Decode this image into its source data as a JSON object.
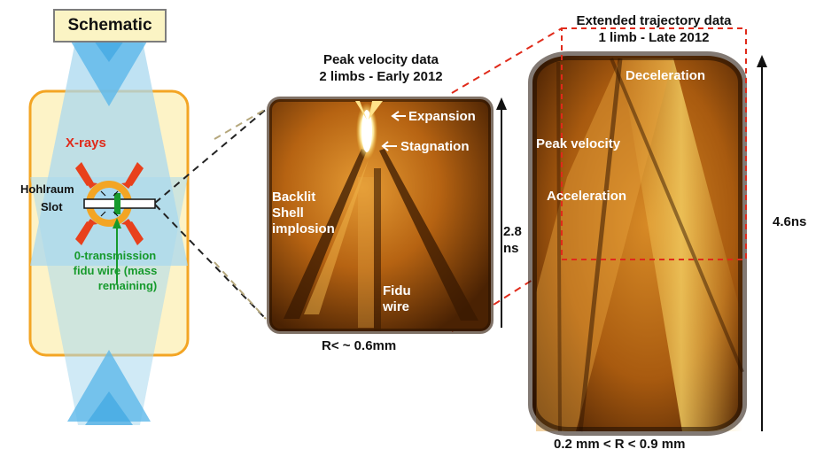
{
  "schematic": {
    "title": "Schematic",
    "xrays": "X-rays",
    "hohlraum": "Hohlraum",
    "slot": "Slot",
    "wire_line1": "0-transmission",
    "wire_line2": "fidu wire (mass",
    "wire_line3": "remaining)"
  },
  "peak_panel": {
    "title_line1": "Peak velocity data",
    "title_line2": "2 limbs - Early 2012",
    "expansion": "Expansion",
    "stagnation": "Stagnation",
    "backlit_line1": "Backlit",
    "backlit_line2": "Shell",
    "backlit_line3": "implosion",
    "fidu_line1": "Fidu",
    "fidu_line2": "wire",
    "time_value": "2.8",
    "time_unit": "ns",
    "radius": "R< ~ 0.6mm"
  },
  "extended_panel": {
    "title_line1": "Extended trajectory data",
    "title_line2": "1 limb - Late 2012",
    "deceleration": "Deceleration",
    "peak_velocity": "Peak velocity",
    "acceleration": "Acceleration",
    "time": "4.6ns",
    "radius": "0.2 mm < R < 0.9 mm"
  },
  "colors": {
    "xray_arrow": "#e8401c",
    "wire": "#169a2c",
    "zoom_dash_dark": "#222222",
    "zoom_dash_tan": "#b5a77c",
    "zoom_dash_red": "#e02a1a",
    "hohlraum_outline": "#f3a524"
  }
}
